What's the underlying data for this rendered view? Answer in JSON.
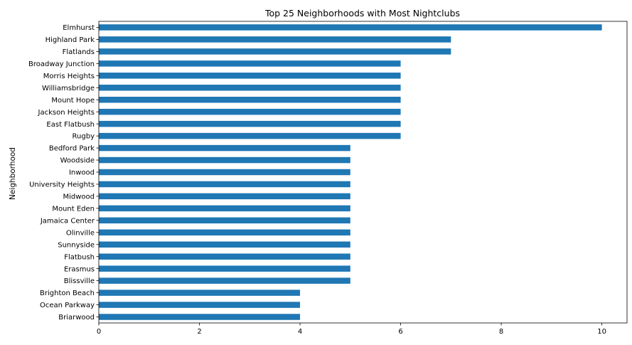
{
  "chart_data": {
    "type": "bar",
    "orientation": "horizontal",
    "title": "Top 25 Neighborhoods with Most Nightclubs",
    "xlabel": "",
    "ylabel": "Neighborhood",
    "xlim": [
      0,
      10.5
    ],
    "xticks": [
      0,
      2,
      4,
      6,
      8,
      10
    ],
    "grid": false,
    "bar_color": "#1f77b4",
    "categories": [
      "Elmhurst",
      "Highland Park",
      "Flatlands",
      "Broadway Junction",
      "Morris Heights",
      "Williamsbridge",
      "Mount Hope",
      "Jackson Heights",
      "East Flatbush",
      "Rugby",
      "Bedford Park",
      "Woodside",
      "Inwood",
      "University Heights",
      "Midwood",
      "Mount Eden",
      "Jamaica Center",
      "Olinville",
      "Sunnyside",
      "Flatbush",
      "Erasmus",
      "Blissville",
      "Brighton Beach",
      "Ocean Parkway",
      "Briarwood"
    ],
    "values": [
      10,
      7,
      7,
      6,
      6,
      6,
      6,
      6,
      6,
      6,
      5,
      5,
      5,
      5,
      5,
      5,
      5,
      5,
      5,
      5,
      5,
      5,
      4,
      4,
      4
    ]
  }
}
